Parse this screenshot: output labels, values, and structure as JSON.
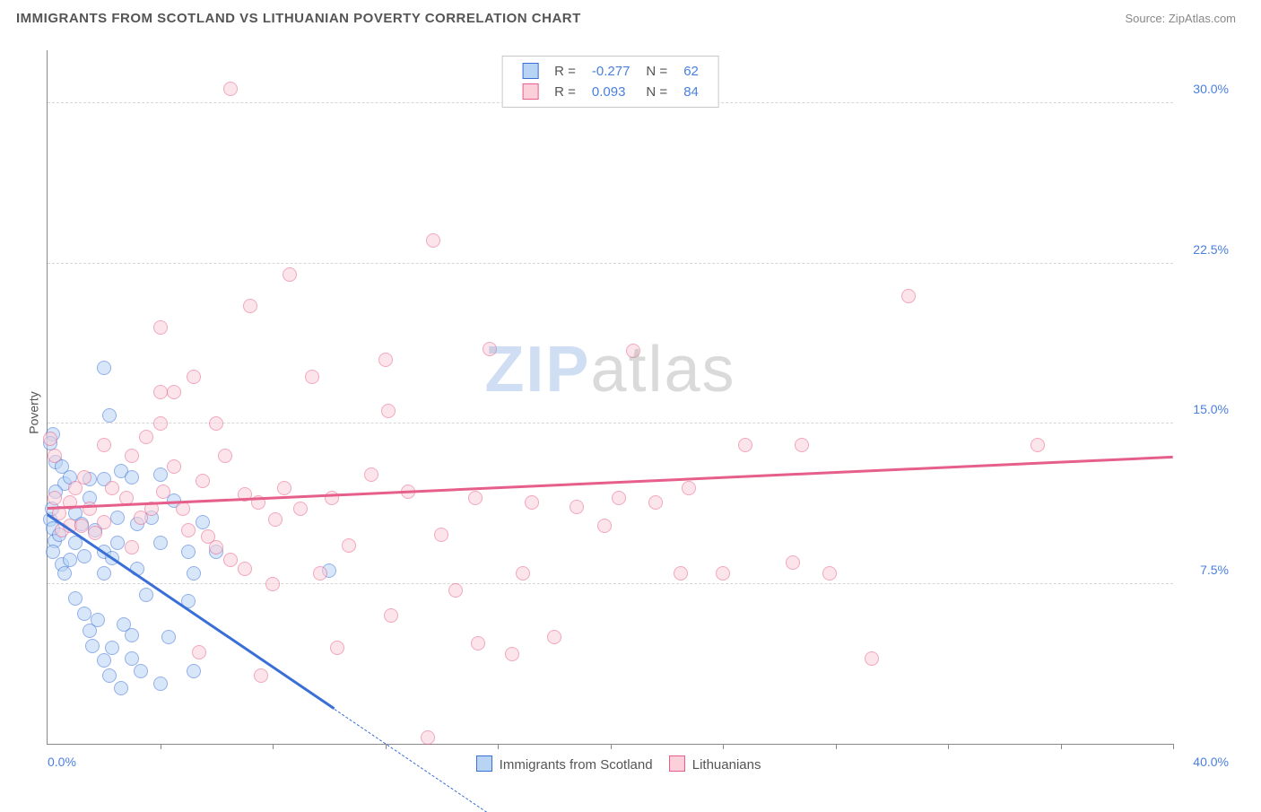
{
  "title": "IMMIGRANTS FROM SCOTLAND VS LITHUANIAN POVERTY CORRELATION CHART",
  "source": "Source: ZipAtlas.com",
  "ylabel": "Poverty",
  "watermark": {
    "part1": "ZIP",
    "part2": "atlas"
  },
  "chart": {
    "type": "scatter",
    "background_color": "#ffffff",
    "grid_color": "#d6d6d6",
    "axis_color": "#888888",
    "value_color": "#4a7fe0",
    "label_color": "#555555",
    "xlim": [
      0,
      40
    ],
    "ylim": [
      0,
      32.5
    ],
    "xlabel_min": "0.0%",
    "xlabel_max": "40.0%",
    "xtick_positions": [
      4,
      8,
      12,
      16,
      20,
      24,
      28,
      32,
      36,
      40
    ],
    "ygrid": [
      {
        "v": 7.5,
        "label": "7.5%"
      },
      {
        "v": 15.0,
        "label": "15.0%"
      },
      {
        "v": 22.5,
        "label": "22.5%"
      },
      {
        "v": 30.0,
        "label": "30.0%"
      }
    ],
    "marker_radius": 8,
    "marker_opacity": 0.55,
    "line_width": 2.5
  },
  "series": [
    {
      "name": "Immigrants from Scotland",
      "color_fill": "#b8d4f5",
      "color_stroke": "#3a6fd8",
      "R": "-0.277",
      "N": "62",
      "trend": {
        "x1": 0,
        "y1": 10.7,
        "x2": 10.2,
        "y2": 1.6,
        "dash_to_x": 15.6
      },
      "points": [
        [
          0.1,
          10.5
        ],
        [
          0.15,
          11.0
        ],
        [
          0.2,
          10.1
        ],
        [
          0.25,
          9.5
        ],
        [
          0.2,
          14.5
        ],
        [
          0.1,
          14.1
        ],
        [
          0.3,
          13.2
        ],
        [
          0.5,
          13.0
        ],
        [
          0.6,
          12.2
        ],
        [
          0.8,
          12.5
        ],
        [
          0.3,
          11.8
        ],
        [
          0.2,
          9.0
        ],
        [
          0.4,
          9.8
        ],
        [
          0.5,
          8.4
        ],
        [
          0.6,
          8.0
        ],
        [
          0.8,
          8.6
        ],
        [
          1.0,
          10.8
        ],
        [
          1.2,
          10.3
        ],
        [
          1.0,
          9.4
        ],
        [
          1.3,
          8.8
        ],
        [
          1.5,
          11.5
        ],
        [
          1.7,
          10.0
        ],
        [
          1.5,
          12.4
        ],
        [
          2.0,
          12.4
        ],
        [
          2.0,
          9.0
        ],
        [
          2.0,
          8.0
        ],
        [
          2.3,
          8.7
        ],
        [
          2.5,
          9.4
        ],
        [
          2.5,
          10.6
        ],
        [
          2.6,
          12.8
        ],
        [
          3.0,
          12.5
        ],
        [
          3.2,
          10.3
        ],
        [
          3.2,
          8.2
        ],
        [
          3.5,
          7.0
        ],
        [
          3.7,
          10.6
        ],
        [
          4.0,
          9.4
        ],
        [
          4.0,
          12.6
        ],
        [
          4.5,
          11.4
        ],
        [
          5.0,
          9.0
        ],
        [
          5.0,
          6.7
        ],
        [
          5.2,
          8.0
        ],
        [
          5.5,
          10.4
        ],
        [
          2.0,
          17.6
        ],
        [
          2.2,
          15.4
        ],
        [
          1.0,
          6.8
        ],
        [
          1.3,
          6.1
        ],
        [
          1.5,
          5.3
        ],
        [
          1.6,
          4.6
        ],
        [
          1.8,
          5.8
        ],
        [
          2.0,
          3.9
        ],
        [
          2.2,
          3.2
        ],
        [
          2.3,
          4.5
        ],
        [
          2.6,
          2.6
        ],
        [
          2.7,
          5.6
        ],
        [
          3.0,
          4.0
        ],
        [
          3.0,
          5.1
        ],
        [
          3.3,
          3.4
        ],
        [
          4.0,
          2.8
        ],
        [
          4.3,
          5.0
        ],
        [
          5.2,
          3.4
        ],
        [
          6.0,
          9.0
        ],
        [
          10.0,
          8.1
        ]
      ]
    },
    {
      "name": "Lithuanians",
      "color_fill": "#fbd0da",
      "color_stroke": "#e65f8a",
      "R": "0.093",
      "N": "84",
      "trend": {
        "x1": 0,
        "y1": 11.0,
        "x2": 40,
        "y2": 13.4
      },
      "points": [
        [
          0.1,
          14.3
        ],
        [
          0.25,
          13.5
        ],
        [
          0.25,
          11.5
        ],
        [
          0.4,
          10.8
        ],
        [
          0.5,
          10.0
        ],
        [
          0.8,
          10.2
        ],
        [
          0.8,
          11.3
        ],
        [
          1.0,
          12.0
        ],
        [
          1.2,
          10.2
        ],
        [
          1.3,
          12.5
        ],
        [
          1.5,
          11.0
        ],
        [
          1.7,
          9.9
        ],
        [
          2.0,
          10.4
        ],
        [
          2.0,
          14.0
        ],
        [
          2.3,
          12.0
        ],
        [
          2.8,
          11.5
        ],
        [
          3.0,
          9.2
        ],
        [
          3.0,
          13.5
        ],
        [
          3.3,
          10.6
        ],
        [
          3.5,
          14.4
        ],
        [
          3.7,
          11.0
        ],
        [
          4.0,
          15.0
        ],
        [
          4.1,
          11.8
        ],
        [
          4.5,
          13.0
        ],
        [
          4.5,
          16.5
        ],
        [
          4.8,
          11.0
        ],
        [
          5.0,
          10.0
        ],
        [
          5.2,
          17.2
        ],
        [
          5.4,
          4.3
        ],
        [
          5.5,
          12.3
        ],
        [
          5.7,
          9.7
        ],
        [
          6.0,
          9.2
        ],
        [
          6.0,
          15.0
        ],
        [
          6.3,
          13.5
        ],
        [
          6.5,
          8.6
        ],
        [
          7.0,
          11.7
        ],
        [
          7.0,
          8.2
        ],
        [
          7.2,
          20.5
        ],
        [
          7.5,
          11.3
        ],
        [
          7.6,
          3.2
        ],
        [
          8.0,
          7.5
        ],
        [
          8.1,
          10.5
        ],
        [
          8.4,
          12.0
        ],
        [
          8.6,
          22.0
        ],
        [
          9.0,
          11.0
        ],
        [
          9.4,
          17.2
        ],
        [
          9.7,
          8.0
        ],
        [
          10.1,
          11.5
        ],
        [
          10.3,
          4.5
        ],
        [
          10.7,
          9.3
        ],
        [
          11.5,
          12.6
        ],
        [
          12.0,
          18.0
        ],
        [
          12.2,
          6.0
        ],
        [
          12.8,
          11.8
        ],
        [
          12.1,
          15.6
        ],
        [
          13.7,
          23.6
        ],
        [
          13.5,
          0.3
        ],
        [
          14.0,
          9.8
        ],
        [
          14.5,
          7.2
        ],
        [
          15.2,
          11.5
        ],
        [
          15.3,
          4.7
        ],
        [
          15.7,
          18.5
        ],
        [
          16.5,
          4.2
        ],
        [
          17.2,
          11.3
        ],
        [
          16.9,
          8.0
        ],
        [
          18.0,
          5.0
        ],
        [
          18.8,
          11.1
        ],
        [
          19.8,
          10.2
        ],
        [
          20.3,
          11.5
        ],
        [
          20.8,
          18.4
        ],
        [
          21.6,
          11.3
        ],
        [
          22.5,
          8.0
        ],
        [
          22.8,
          12.0
        ],
        [
          24.0,
          8.0
        ],
        [
          24.8,
          14.0
        ],
        [
          26.5,
          8.5
        ],
        [
          26.8,
          14.0
        ],
        [
          27.8,
          8.0
        ],
        [
          29.3,
          4.0
        ],
        [
          30.6,
          21.0
        ],
        [
          35.2,
          14.0
        ],
        [
          6.5,
          30.7
        ],
        [
          4.0,
          19.5
        ],
        [
          4.0,
          16.5
        ]
      ]
    }
  ]
}
